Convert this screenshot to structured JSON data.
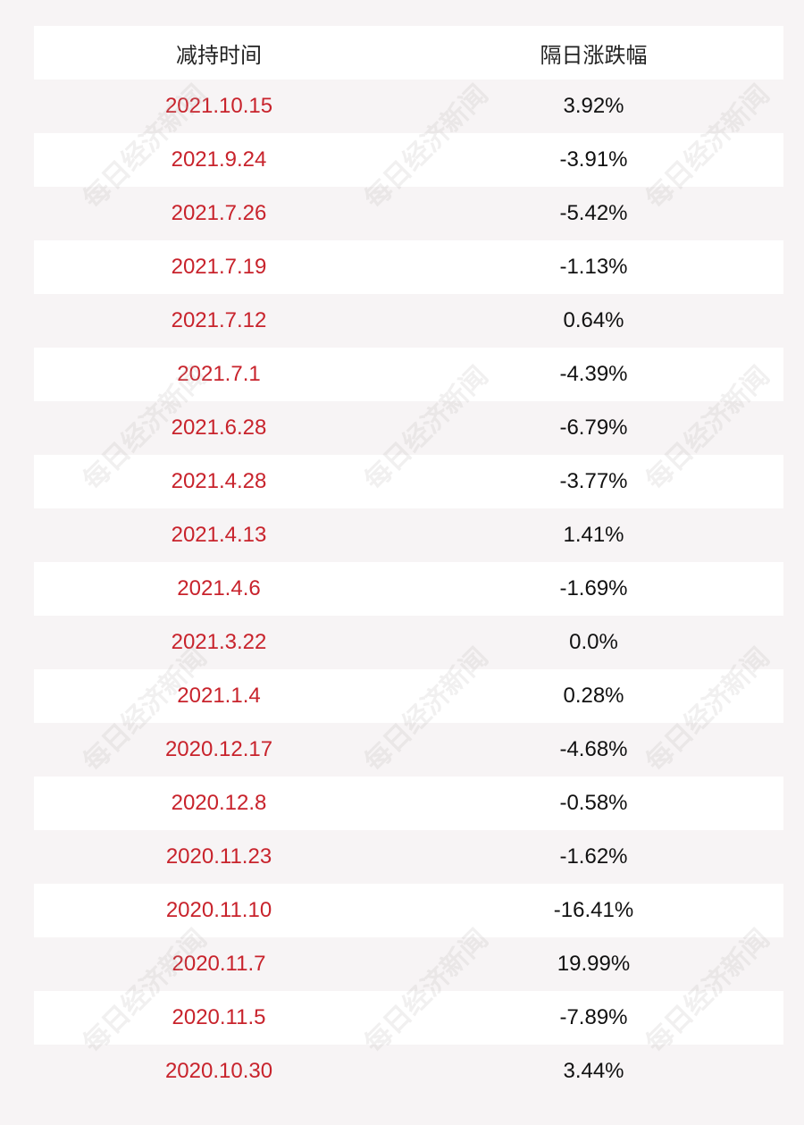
{
  "header": {
    "col_date": "减持时间",
    "col_change": "隔日涨跌幅"
  },
  "rows": [
    {
      "date": "2021.10.15",
      "change": "3.92%"
    },
    {
      "date": "2021.9.24",
      "change": "-3.91%"
    },
    {
      "date": "2021.7.26",
      "change": "-5.42%"
    },
    {
      "date": "2021.7.19",
      "change": "-1.13%"
    },
    {
      "date": "2021.7.12",
      "change": "0.64%"
    },
    {
      "date": "2021.7.1",
      "change": "-4.39%"
    },
    {
      "date": "2021.6.28",
      "change": "-6.79%"
    },
    {
      "date": "2021.4.28",
      "change": "-3.77%"
    },
    {
      "date": "2021.4.13",
      "change": "1.41%"
    },
    {
      "date": "2021.4.6",
      "change": "-1.69%"
    },
    {
      "date": "2021.3.22",
      "change": "0.0%"
    },
    {
      "date": "2021.1.4",
      "change": "0.28%"
    },
    {
      "date": "2020.12.17",
      "change": "-4.68%"
    },
    {
      "date": "2020.12.8",
      "change": "-0.58%"
    },
    {
      "date": "2020.11.23",
      "change": "-1.62%"
    },
    {
      "date": "2020.11.10",
      "change": "-16.41%"
    },
    {
      "date": "2020.11.7",
      "change": "19.99%"
    },
    {
      "date": "2020.11.5",
      "change": "-7.89%"
    },
    {
      "date": "2020.10.30",
      "change": "3.44%"
    }
  ],
  "watermark": "每日经济新闻",
  "colors": {
    "date_text": "#c8232c",
    "row_alt": "#f7f4f5",
    "row_base": "#ffffff"
  }
}
